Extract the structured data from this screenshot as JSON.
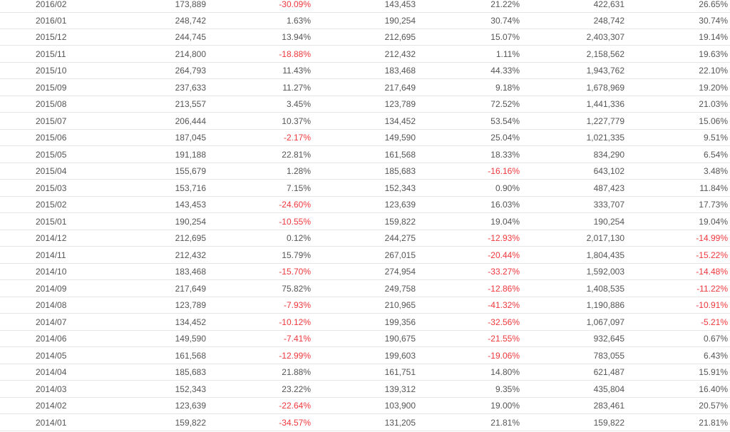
{
  "table": {
    "rows": [
      [
        "2016/02",
        "173,889",
        "-30.09%",
        "143,453",
        "21.22%",
        "422,631",
        "26.65%"
      ],
      [
        "2016/01",
        "248,742",
        "1.63%",
        "190,254",
        "30.74%",
        "248,742",
        "30.74%"
      ],
      [
        "2015/12",
        "244,745",
        "13.94%",
        "212,695",
        "15.07%",
        "2,403,307",
        "19.14%"
      ],
      [
        "2015/11",
        "214,800",
        "-18.88%",
        "212,432",
        "1.11%",
        "2,158,562",
        "19.63%"
      ],
      [
        "2015/10",
        "264,793",
        "11.43%",
        "183,468",
        "44.33%",
        "1,943,762",
        "22.10%"
      ],
      [
        "2015/09",
        "237,633",
        "11.27%",
        "217,649",
        "9.18%",
        "1,678,969",
        "19.20%"
      ],
      [
        "2015/08",
        "213,557",
        "3.45%",
        "123,789",
        "72.52%",
        "1,441,336",
        "21.03%"
      ],
      [
        "2015/07",
        "206,444",
        "10.37%",
        "134,452",
        "53.54%",
        "1,227,779",
        "15.06%"
      ],
      [
        "2015/06",
        "187,045",
        "-2.17%",
        "149,590",
        "25.04%",
        "1,021,335",
        "9.51%"
      ],
      [
        "2015/05",
        "191,188",
        "22.81%",
        "161,568",
        "18.33%",
        "834,290",
        "6.54%"
      ],
      [
        "2015/04",
        "155,679",
        "1.28%",
        "185,683",
        "-16.16%",
        "643,102",
        "3.48%"
      ],
      [
        "2015/03",
        "153,716",
        "7.15%",
        "152,343",
        "0.90%",
        "487,423",
        "11.84%"
      ],
      [
        "2015/02",
        "143,453",
        "-24.60%",
        "123,639",
        "16.03%",
        "333,707",
        "17.73%"
      ],
      [
        "2015/01",
        "190,254",
        "-10.55%",
        "159,822",
        "19.04%",
        "190,254",
        "19.04%"
      ],
      [
        "2014/12",
        "212,695",
        "0.12%",
        "244,275",
        "-12.93%",
        "2,017,130",
        "-14.99%"
      ],
      [
        "2014/11",
        "212,432",
        "15.79%",
        "267,015",
        "-20.44%",
        "1,804,435",
        "-15.22%"
      ],
      [
        "2014/10",
        "183,468",
        "-15.70%",
        "274,954",
        "-33.27%",
        "1,592,003",
        "-14.48%"
      ],
      [
        "2014/09",
        "217,649",
        "75.82%",
        "249,758",
        "-12.86%",
        "1,408,535",
        "-11.22%"
      ],
      [
        "2014/08",
        "123,789",
        "-7.93%",
        "210,965",
        "-41.32%",
        "1,190,886",
        "-10.91%"
      ],
      [
        "2014/07",
        "134,452",
        "-10.12%",
        "199,356",
        "-32.56%",
        "1,067,097",
        "-5.21%"
      ],
      [
        "2014/06",
        "149,590",
        "-7.41%",
        "190,675",
        "-21.55%",
        "932,645",
        "0.67%"
      ],
      [
        "2014/05",
        "161,568",
        "-12.99%",
        "199,603",
        "-19.06%",
        "783,055",
        "6.43%"
      ],
      [
        "2014/04",
        "185,683",
        "21.88%",
        "161,751",
        "14.80%",
        "621,487",
        "15.91%"
      ],
      [
        "2014/03",
        "152,343",
        "23.22%",
        "139,312",
        "9.35%",
        "435,804",
        "16.40%"
      ],
      [
        "2014/02",
        "123,639",
        "-22.64%",
        "103,900",
        "19.00%",
        "283,461",
        "20.57%"
      ],
      [
        "2014/01",
        "159,822",
        "-34.57%",
        "131,205",
        "21.81%",
        "159,822",
        "21.81%"
      ]
    ]
  }
}
